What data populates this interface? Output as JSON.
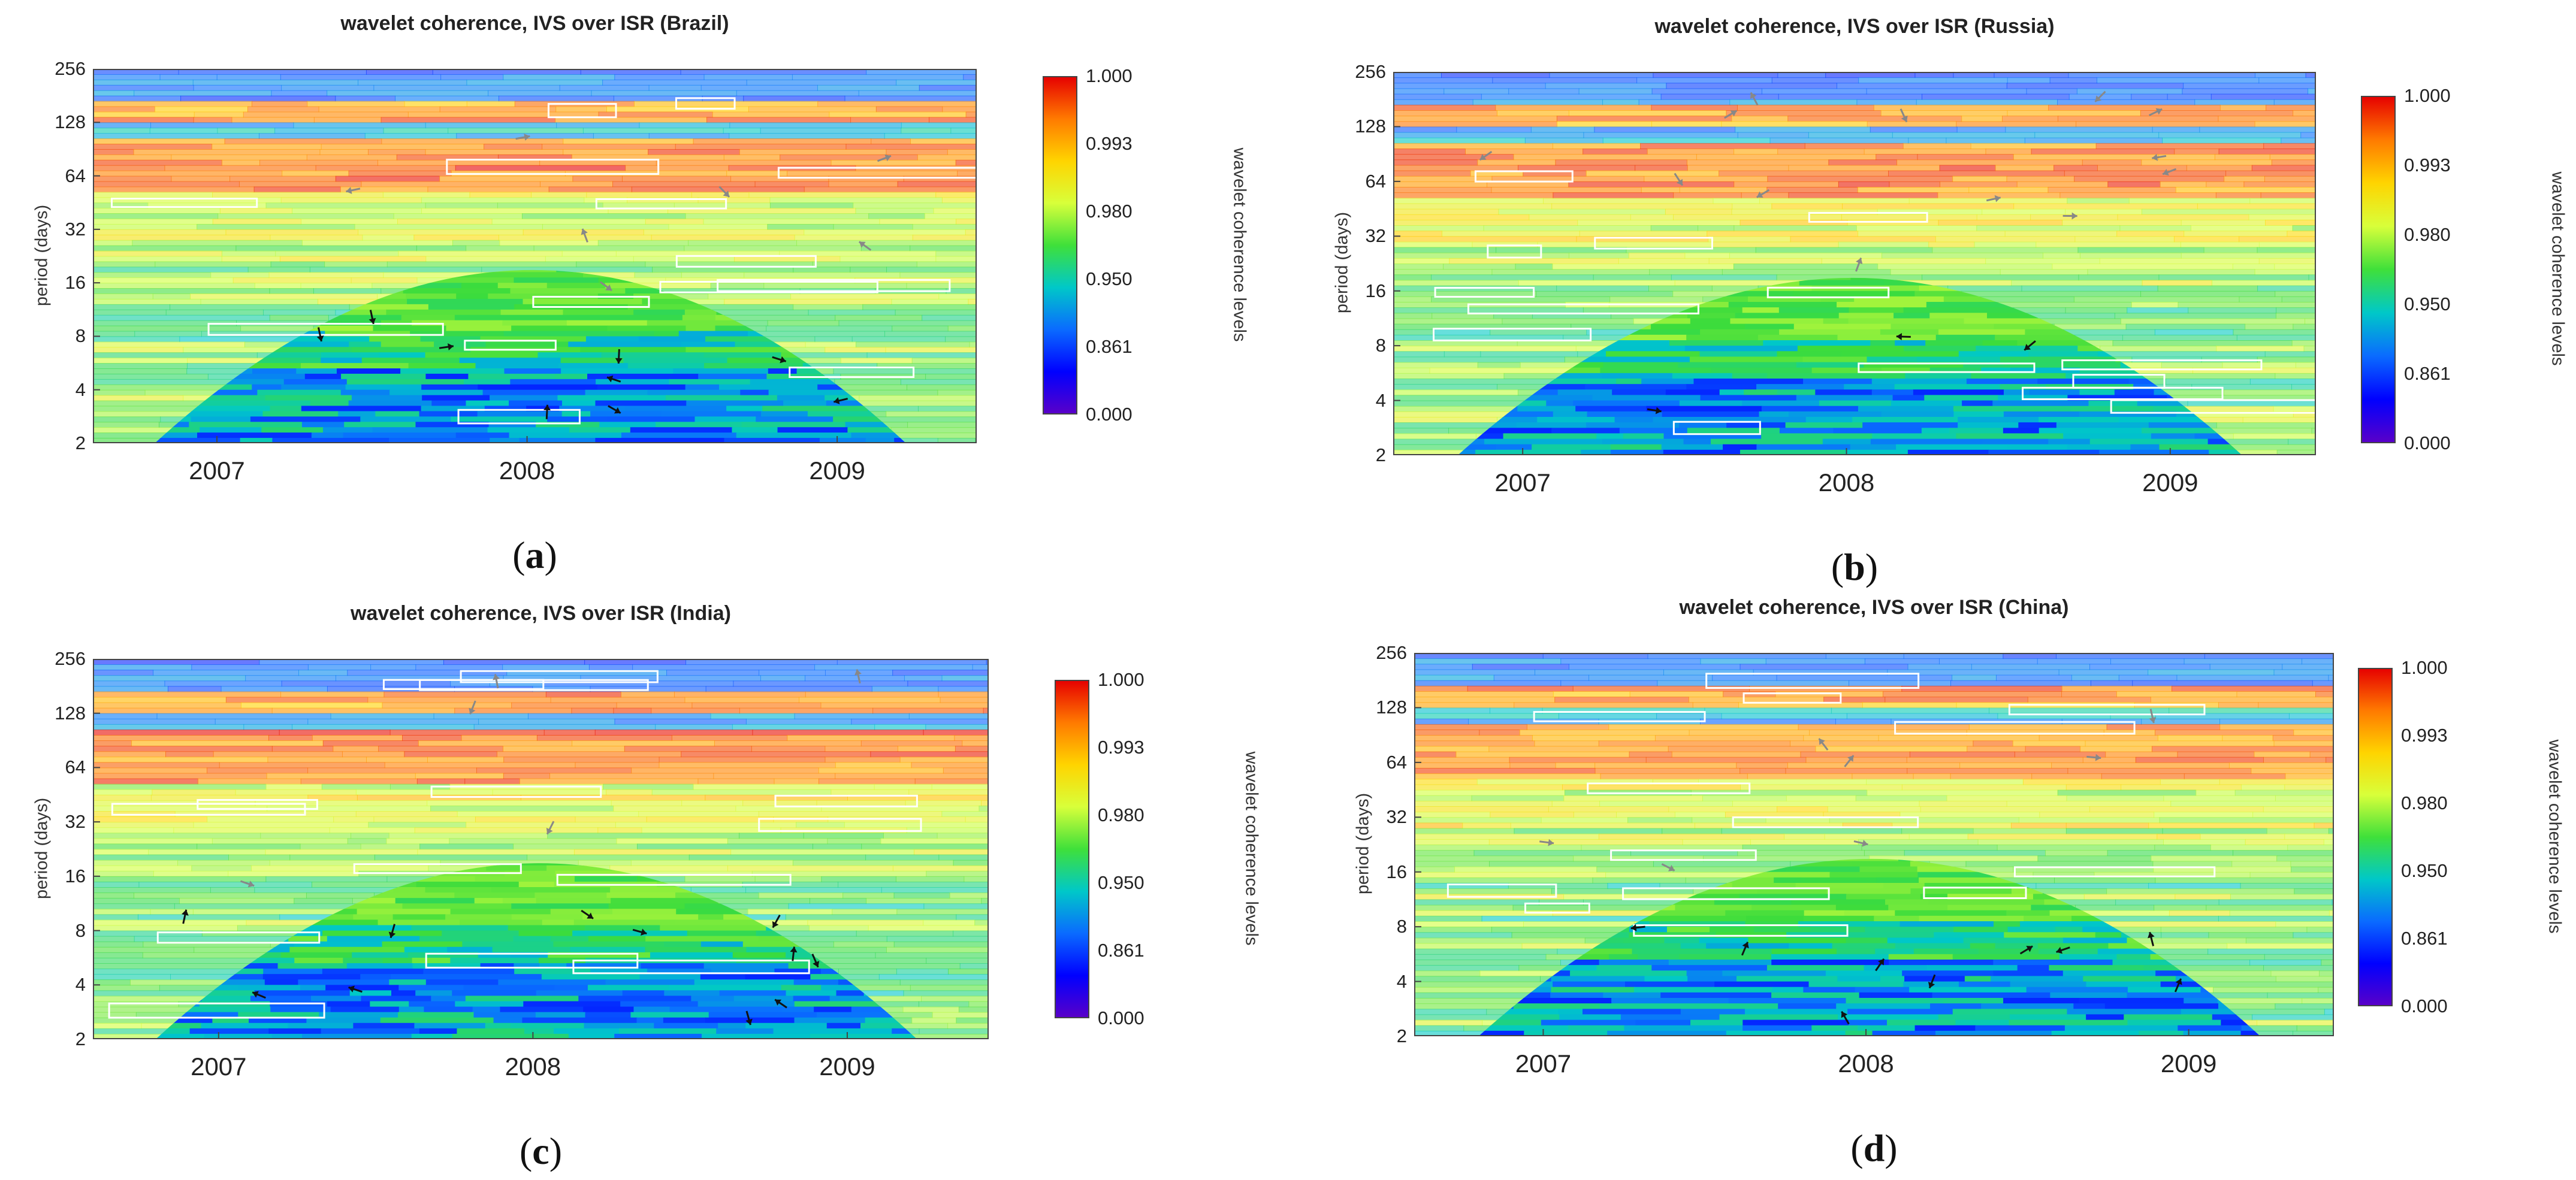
{
  "colorbar": {
    "label": "wavelet coherence levels",
    "ticks": [
      "1.000",
      "0.993",
      "0.980",
      "0.950",
      "0.861",
      "0.000"
    ],
    "colors": [
      "#e60000",
      "#ff7a00",
      "#ffd400",
      "#d8ff3a",
      "#3fe03a",
      "#00c8c8",
      "#0a6bff",
      "#0000ff",
      "#5a00c8"
    ]
  },
  "colors": {
    "cone_green": "#3fd63a",
    "cone_blue": "#1a4bf0",
    "band_orange": "#f4a37a",
    "band_purple": "#9a9ff0",
    "contour": "#ffffff",
    "arrow_dark": "#111111",
    "arrow_grey": "#888888"
  },
  "chart_data": [
    {
      "type": "heatmap",
      "panel": "a",
      "title": "wavelet coherence, IVS over ISR (Brazil)",
      "ylabel": "period (days)",
      "xlabel": "",
      "yticks": [
        "256",
        "128",
        "64",
        "32",
        "16",
        "8",
        "4",
        "2"
      ],
      "xticks": [
        "2007",
        "2008",
        "2009"
      ],
      "y_scale": "log2",
      "ylim": [
        2,
        256
      ],
      "xlim": [
        2006.6,
        2009.45
      ],
      "cone_peak_period": 20,
      "colorbar_levels": [
        0.0,
        0.861,
        0.95,
        0.98,
        0.993,
        1.0
      ],
      "sublabel": "(a)"
    },
    {
      "type": "heatmap",
      "panel": "b",
      "title": "wavelet coherence, IVS over ISR (Russia)",
      "ylabel": "period (days)",
      "xlabel": "",
      "yticks": [
        "256",
        "128",
        "64",
        "32",
        "16",
        "8",
        "4",
        "2"
      ],
      "xticks": [
        "2007",
        "2008",
        "2009"
      ],
      "y_scale": "log2",
      "ylim": [
        2,
        256
      ],
      "xlim": [
        2006.6,
        2009.45
      ],
      "cone_peak_period": 20,
      "colorbar_levels": [
        0.0,
        0.861,
        0.95,
        0.98,
        0.993,
        1.0
      ],
      "sublabel": "(b)"
    },
    {
      "type": "heatmap",
      "panel": "c",
      "title": "wavelet coherence, IVS over ISR (India)",
      "ylabel": "period (days)",
      "xlabel": "",
      "yticks": [
        "256",
        "128",
        "64",
        "32",
        "16",
        "8",
        "4",
        "2"
      ],
      "xticks": [
        "2007",
        "2008",
        "2009"
      ],
      "y_scale": "log2",
      "ylim": [
        2,
        256
      ],
      "xlim": [
        2006.6,
        2009.45
      ],
      "cone_peak_period": 20,
      "colorbar_levels": [
        0.0,
        0.861,
        0.95,
        0.98,
        0.993,
        1.0
      ],
      "sublabel": "(c)"
    },
    {
      "type": "heatmap",
      "panel": "d",
      "title": "wavelet coherence, IVS over ISR (China)",
      "ylabel": "period (days)",
      "xlabel": "",
      "yticks": [
        "256",
        "128",
        "64",
        "32",
        "16",
        "8",
        "4",
        "2"
      ],
      "xticks": [
        "2007",
        "2008",
        "2009"
      ],
      "y_scale": "log2",
      "ylim": [
        2,
        256
      ],
      "xlim": [
        2006.6,
        2009.45
      ],
      "cone_peak_period": 20,
      "colorbar_levels": [
        0.0,
        0.861,
        0.95,
        0.98,
        0.993,
        1.0
      ],
      "sublabel": "(d)"
    }
  ]
}
